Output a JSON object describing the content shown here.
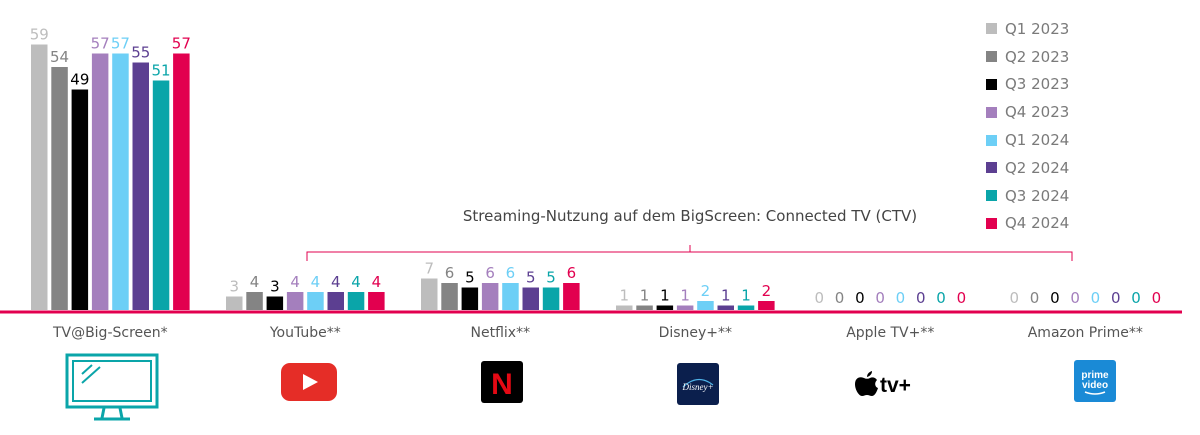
{
  "chart_data": {
    "type": "bar",
    "categories": [
      "TV@Big-Screen*",
      "YouTube**",
      "Netflix**",
      "Disney+**",
      "Apple TV+**",
      "Amazon Prime**"
    ],
    "series": [
      {
        "name": "Q1 2023",
        "color": "#bdbdbd",
        "values": [
          59,
          3,
          7,
          1,
          0,
          0
        ]
      },
      {
        "name": "Q2 2023",
        "color": "#848484",
        "values": [
          54,
          4,
          6,
          1,
          0,
          0
        ]
      },
      {
        "name": "Q3 2023",
        "color": "#000000",
        "values": [
          49,
          3,
          5,
          1,
          0,
          0
        ]
      },
      {
        "name": "Q4 2023",
        "color": "#a47fbd",
        "values": [
          57,
          4,
          6,
          1,
          0,
          0
        ]
      },
      {
        "name": "Q1 2024",
        "color": "#6dcff6",
        "values": [
          57,
          4,
          6,
          2,
          0,
          0
        ]
      },
      {
        "name": "Q2 2024",
        "color": "#5c3f91",
        "values": [
          55,
          4,
          5,
          1,
          0,
          0
        ]
      },
      {
        "name": "Q3 2024",
        "color": "#0aa5a9",
        "values": [
          51,
          4,
          5,
          1,
          0,
          0
        ]
      },
      {
        "name": "Q4 2024",
        "color": "#e2004f",
        "values": [
          57,
          4,
          6,
          2,
          0,
          0
        ]
      }
    ],
    "ylim": [
      0,
      60
    ],
    "grid": false,
    "legend_position": "top-right",
    "annotation": "Streaming-Nutzung auf dem BigScreen: Connected TV (CTV)",
    "baseline_color": "#e2004f"
  },
  "icons": [
    "tv-icon",
    "youtube-icon",
    "netflix-icon",
    "disney-plus-icon",
    "apple-tv-plus-icon",
    "prime-video-icon"
  ],
  "icon_text": {
    "netflix": "N",
    "disney": "Disney+",
    "appletv": "tv+",
    "prime_line1": "prime",
    "prime_line2": "video"
  }
}
